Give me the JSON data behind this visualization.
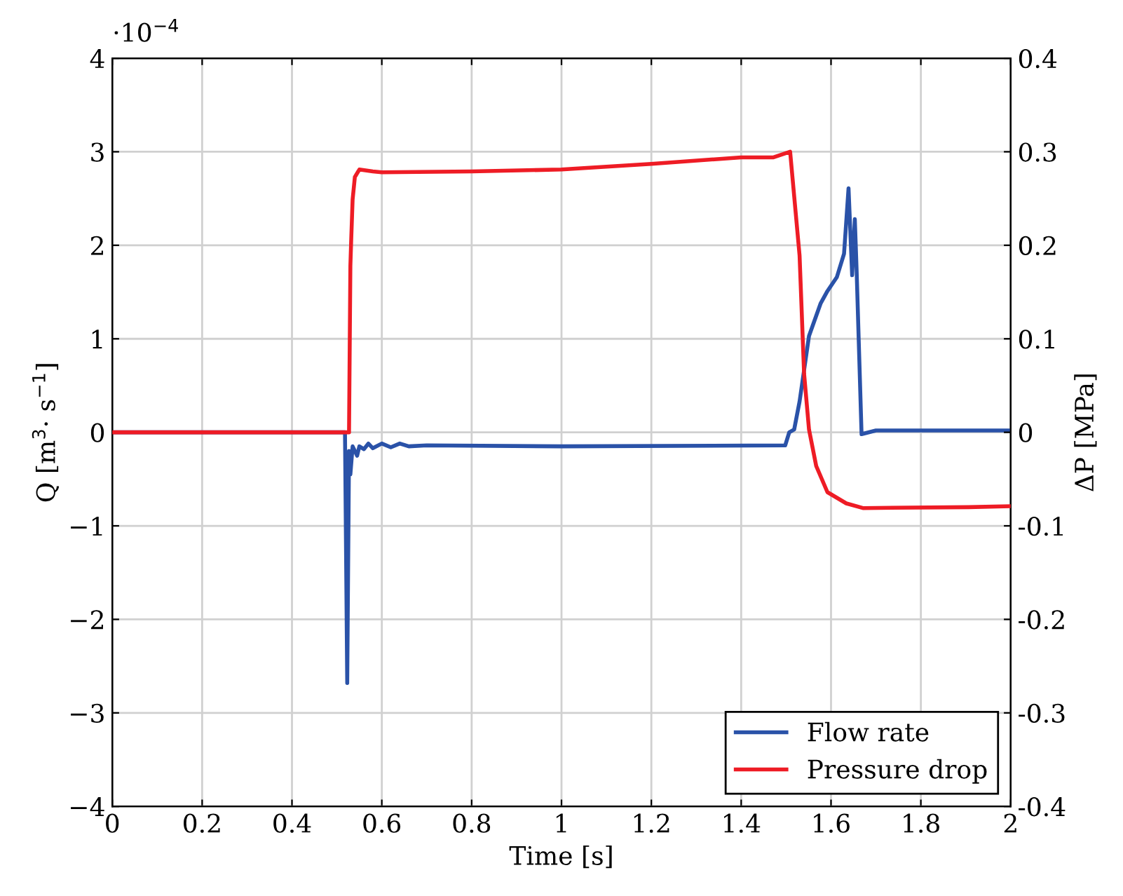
{
  "chart_data": {
    "type": "line",
    "xlabel": "Time [s]",
    "ylabel": "Q [m$^{3}$· s$^{−1}$]",
    "y2label": "ΔP [MPa]",
    "annotations": [
      "·10$^{−4}$"
    ],
    "xlim": [
      0,
      2
    ],
    "xticks": [
      0,
      0.2,
      0.4,
      0.6,
      0.8,
      1,
      1.2,
      1.4,
      1.6,
      1.8,
      2
    ],
    "ylim": [
      -4,
      4
    ],
    "yticks": [
      {
        "value": -4,
        "label": "−4"
      },
      {
        "value": -3,
        "label": "−3"
      },
      {
        "value": -2,
        "label": "−2"
      },
      {
        "value": -1,
        "label": "−1"
      },
      0,
      1,
      2,
      3,
      4
    ],
    "y2lim": [
      -0.4,
      0.4
    ],
    "y2ticks": [
      {
        "value": -0.4,
        "label": "-0.4"
      },
      {
        "value": -0.3,
        "label": "-0.3"
      },
      {
        "value": -0.2,
        "label": "-0.2"
      },
      {
        "value": -0.1,
        "label": "-0.1"
      },
      0,
      0.1,
      0.2,
      0.3,
      0.4
    ],
    "grid": true,
    "legend": "bottom right",
    "line_style": "solid",
    "marker": "none",
    "series": [
      {
        "name": "Flow rate",
        "color": "#2a52a8",
        "x": [
          0,
          0.51,
          0.518,
          0.523,
          0.527,
          0.53,
          0.535,
          0.545,
          0.55,
          0.56,
          0.57,
          0.58,
          0.6,
          0.62,
          0.64,
          0.66,
          0.7,
          1.0,
          1.498,
          1.507,
          1.518,
          1.53,
          1.551,
          1.577,
          1.592,
          1.613,
          1.629,
          1.639,
          1.647,
          1.653,
          1.657,
          1.668,
          1.7,
          2.0
        ],
        "values": [
          0,
          0,
          0,
          -2.68,
          -0.2,
          -0.45,
          -0.15,
          -0.25,
          -0.15,
          -0.18,
          -0.12,
          -0.17,
          -0.12,
          -0.16,
          -0.12,
          -0.15,
          -0.14,
          -0.15,
          -0.14,
          0,
          0.03,
          0.33,
          1.03,
          1.38,
          1.51,
          1.66,
          1.91,
          2.61,
          1.68,
          2.28,
          1.73,
          -0.02,
          0.02,
          0.02
        ]
      },
      {
        "name": "Pressure drop",
        "color": "#ee1c25",
        "axis": "y2",
        "x": [
          0,
          0.52,
          0.527,
          0.53,
          0.532,
          0.535,
          0.54,
          0.55,
          0.58,
          0.6,
          0.8,
          1.0,
          1.2,
          1.4,
          1.472,
          1.509,
          1.53,
          1.54,
          1.551,
          1.567,
          1.592,
          1.634,
          1.671,
          1.906,
          2.0
        ],
        "values": [
          0,
          0,
          0,
          0.178,
          0.208,
          0.249,
          0.273,
          0.281,
          0.279,
          0.278,
          0.279,
          0.281,
          0.287,
          0.294,
          0.294,
          0.3,
          0.189,
          0.063,
          0.003,
          -0.036,
          -0.064,
          -0.076,
          -0.081,
          -0.08,
          -0.079
        ]
      }
    ]
  }
}
